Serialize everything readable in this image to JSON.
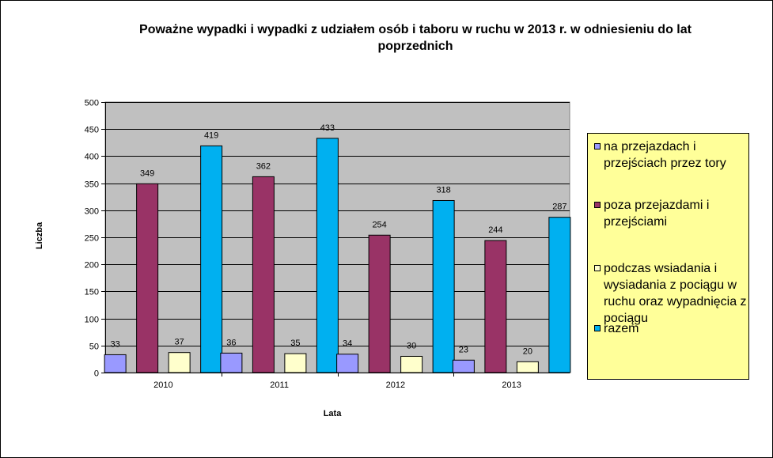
{
  "chart_data": {
    "type": "bar",
    "title": "Poważne wypadki i wypadki z udziałem osób i taboru w ruchu w 2013 r. w odniesieniu  do lat poprzednich",
    "xlabel": "Lata",
    "ylabel": "Liczba",
    "ylim": [
      0,
      500
    ],
    "yticks": [
      "0",
      "50",
      "100",
      "150",
      "200",
      "250",
      "300",
      "350",
      "400",
      "450",
      "500"
    ],
    "categories": [
      "2010",
      "2011",
      "2012",
      "2013"
    ],
    "grid": true,
    "legend_position": "right",
    "plot_background": "#c0c0c0",
    "series": [
      {
        "name": "na przejazdach i przejściach przez tory",
        "color": "#9999ff",
        "values": [
          33,
          36,
          34,
          23
        ]
      },
      {
        "name": "poza przejazdami i przejściami",
        "color": "#993366",
        "values": [
          349,
          362,
          254,
          244
        ]
      },
      {
        "name": "podczas wsiadania i wysiadania z pociągu w ruchu oraz wypadnięcia z pociągu",
        "color": "#ffffcc",
        "values": [
          37,
          35,
          30,
          20
        ]
      },
      {
        "name": "razem",
        "color": "#00b0f0",
        "values": [
          419,
          433,
          318,
          287
        ]
      }
    ]
  }
}
